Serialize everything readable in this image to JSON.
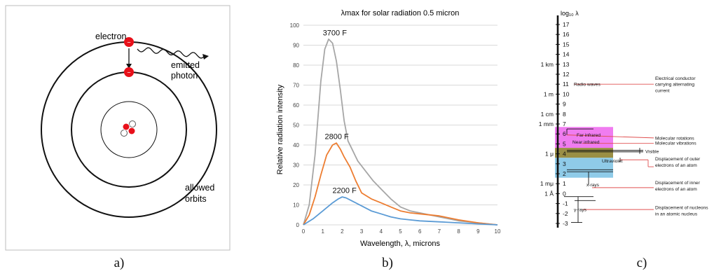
{
  "panel_a": {
    "caption": "a)",
    "labels": {
      "electron": "electron",
      "emitted": "emitted",
      "photon": "photon",
      "allowed": "allowed",
      "orbits": "orbits",
      "minus": "−"
    },
    "colors": {
      "electron": "#e8101a",
      "nucleus_red": "#e8101a",
      "frame": "#bdbdbd"
    }
  },
  "panel_b": {
    "caption": "b)",
    "chart_data": {
      "type": "line",
      "title": "λmax for solar radiation 0.5 micron",
      "xlabel": "Wavelength, λ, microns",
      "ylabel": "Relative radiation intensity",
      "xlim": [
        0,
        10
      ],
      "ylim": [
        0,
        100
      ],
      "xticks": [
        "0",
        "1",
        "2",
        "3",
        "4",
        "5",
        "6",
        "7",
        "8",
        "9",
        "10"
      ],
      "yticks": [
        "0",
        "10",
        "20",
        "30",
        "40",
        "50",
        "60",
        "70",
        "80",
        "90",
        "100"
      ],
      "grid": "horizontal",
      "series": [
        {
          "name": "3700 F",
          "color": "#a6a6a6",
          "x": [
            0,
            0.3,
            0.6,
            0.9,
            1.1,
            1.3,
            1.5,
            1.7,
            1.9,
            2.1,
            2.3,
            2.5,
            2.8,
            3.2,
            3.6,
            4.0,
            4.5,
            5.0,
            5.5,
            6.0,
            7.0,
            8.0,
            9.0,
            10.0
          ],
          "y": [
            0,
            10,
            35,
            72,
            88,
            93,
            91,
            82,
            68,
            52,
            42,
            38,
            32,
            27,
            22,
            18,
            13,
            9,
            7,
            6,
            4,
            2,
            1,
            0
          ]
        },
        {
          "name": "2800 F",
          "color": "#ed7d31",
          "x": [
            0,
            0.3,
            0.6,
            0.9,
            1.2,
            1.5,
            1.7,
            1.9,
            2.1,
            2.4,
            2.7,
            3.0,
            3.5,
            4.0,
            4.5,
            5.0,
            5.5,
            6.0,
            7.0,
            8.0,
            9.0,
            10.0
          ],
          "y": [
            0,
            5,
            14,
            25,
            35,
            40,
            41,
            38,
            34,
            29,
            22,
            16,
            13,
            11,
            9,
            7,
            6,
            5.5,
            4.5,
            2.5,
            1,
            0
          ]
        },
        {
          "name": "2200 F",
          "color": "#5b9bd5",
          "x": [
            0,
            0.5,
            1.0,
            1.5,
            1.8,
            2.0,
            2.2,
            2.5,
            3.0,
            3.5,
            4.0,
            4.5,
            5.0,
            5.5,
            6.0,
            7.0,
            8.0,
            9.0,
            10.0
          ],
          "y": [
            0,
            3,
            7,
            11,
            13,
            14,
            13.5,
            12,
            9.5,
            7,
            5.5,
            4,
            3,
            2.5,
            2,
            1.5,
            1,
            0.5,
            0
          ]
        }
      ],
      "annotations": [
        {
          "text": "3700 F",
          "x": 1.0,
          "y": 95
        },
        {
          "text": "2800 F",
          "x": 1.1,
          "y": 43
        },
        {
          "text": "2200 F",
          "x": 1.5,
          "y": 16
        }
      ]
    }
  },
  "panel_c": {
    "caption": "c)",
    "axis_title": "log₁₀ λ",
    "scale_ticks": [
      "17",
      "16",
      "15",
      "14",
      "13",
      "12",
      "11",
      "10",
      "9",
      "8",
      "7",
      "6",
      "5",
      "4",
      "3",
      "2",
      "1",
      "0",
      "-1",
      "-2",
      "-3"
    ],
    "units": [
      {
        "text": "1 km",
        "at": 13
      },
      {
        "text": "1 m",
        "at": 10
      },
      {
        "text": "1 cm",
        "at": 8
      },
      {
        "text": "1 mm",
        "at": 7
      },
      {
        "text": "1 μ",
        "at": 4
      },
      {
        "text": "1 mμ",
        "at": 1
      },
      {
        "text": "1 Å",
        "at": 0
      }
    ],
    "band_labels": {
      "radio": "Radio waves",
      "far_ir": "Far infrared",
      "near_ir": "Near infrared",
      "visible": "Visible",
      "uv": "Ultraviolet",
      "xrays": "x-rays",
      "gamma": "γ-rays"
    },
    "effects": [
      {
        "text": "Electrical conductor\ncarrying alternating\ncurrent",
        "at": 11
      },
      {
        "text": "Molecular rotations",
        "at": 5.6
      },
      {
        "text": "Molecular vibrations",
        "at": 5.1
      },
      {
        "text": "Displacement of outer\nelectrons of an atom",
        "at": 3.2
      },
      {
        "text": "Displacement of inner\nelectrons of an atom",
        "at": 0.8
      },
      {
        "text": "Displacement of nucleons\nin an atomic nucleus",
        "at": -1.7
      }
    ],
    "colors": {
      "infrared": "#f07cf0",
      "visible": "#9a8f45",
      "uv": "#8fcbe8",
      "leader": "#e05050"
    }
  }
}
